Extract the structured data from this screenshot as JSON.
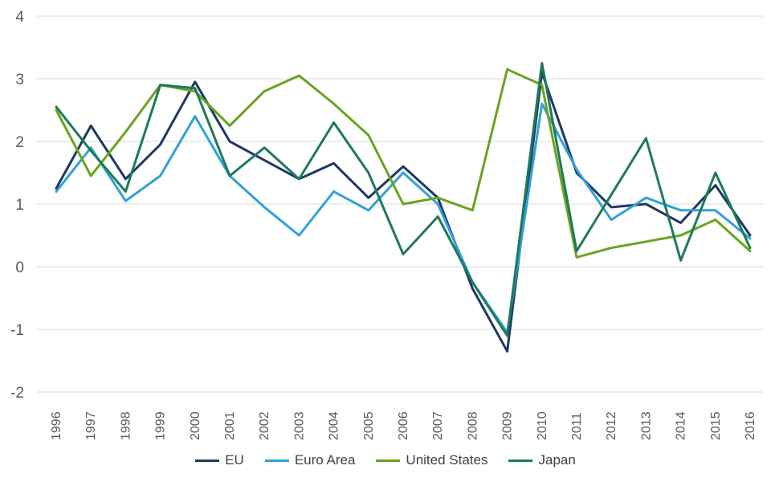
{
  "chart_data": {
    "type": "line",
    "title": "",
    "xlabel": "",
    "ylabel": "",
    "x_labels": [
      "1996",
      "1997",
      "1998",
      "1999",
      "2000",
      "2001",
      "2002",
      "2003",
      "2004",
      "2005",
      "2006",
      "2007",
      "2008",
      "2009",
      "2010",
      "2011",
      "2012",
      "2013",
      "2014",
      "2015",
      "2016"
    ],
    "series": [
      {
        "name": "EU",
        "color": "#1F3864",
        "values": [
          1.25,
          2.25,
          1.4,
          1.95,
          2.95,
          2.0,
          1.7,
          1.4,
          1.65,
          1.1,
          1.6,
          1.1,
          -0.35,
          -1.35,
          3.1,
          1.5,
          0.95,
          1.0,
          0.7,
          1.3,
          0.5
        ]
      },
      {
        "name": "Euro Area",
        "color": "#33A0D8",
        "values": [
          1.2,
          1.9,
          1.05,
          1.45,
          2.4,
          1.45,
          0.95,
          0.5,
          1.2,
          0.9,
          1.5,
          1.0,
          -0.25,
          -1.05,
          2.6,
          1.55,
          0.75,
          1.1,
          0.9,
          0.9,
          0.45
        ]
      },
      {
        "name": "United States",
        "color": "#69A420",
        "values": [
          2.5,
          1.45,
          2.15,
          2.9,
          2.8,
          2.25,
          2.8,
          3.05,
          2.6,
          2.1,
          1.0,
          1.1,
          0.9,
          3.15,
          2.9,
          0.15,
          0.3,
          0.4,
          0.5,
          0.75,
          0.25
        ]
      },
      {
        "name": "Japan",
        "color": "#1E7A5A",
        "values": [
          2.55,
          1.85,
          1.2,
          2.9,
          2.85,
          1.45,
          1.9,
          1.4,
          2.3,
          1.5,
          0.2,
          0.8,
          -0.25,
          -1.1,
          3.25,
          0.25,
          1.15,
          2.05,
          0.1,
          1.5,
          0.3
        ]
      }
    ],
    "ylim": [
      -2,
      4
    ],
    "yticks": [
      4,
      3,
      2,
      1,
      0,
      -1,
      -2
    ],
    "ytick_labels": [
      "4",
      "3",
      "2",
      "1",
      "0",
      "-1",
      "-2"
    ],
    "grid": true,
    "gridline_color": "#D9D9D9",
    "tick_label_color": "#595959",
    "legend_text_color": "#404040",
    "legend_position": "bottom",
    "x_label_rotation": -90,
    "line_width": 3
  }
}
